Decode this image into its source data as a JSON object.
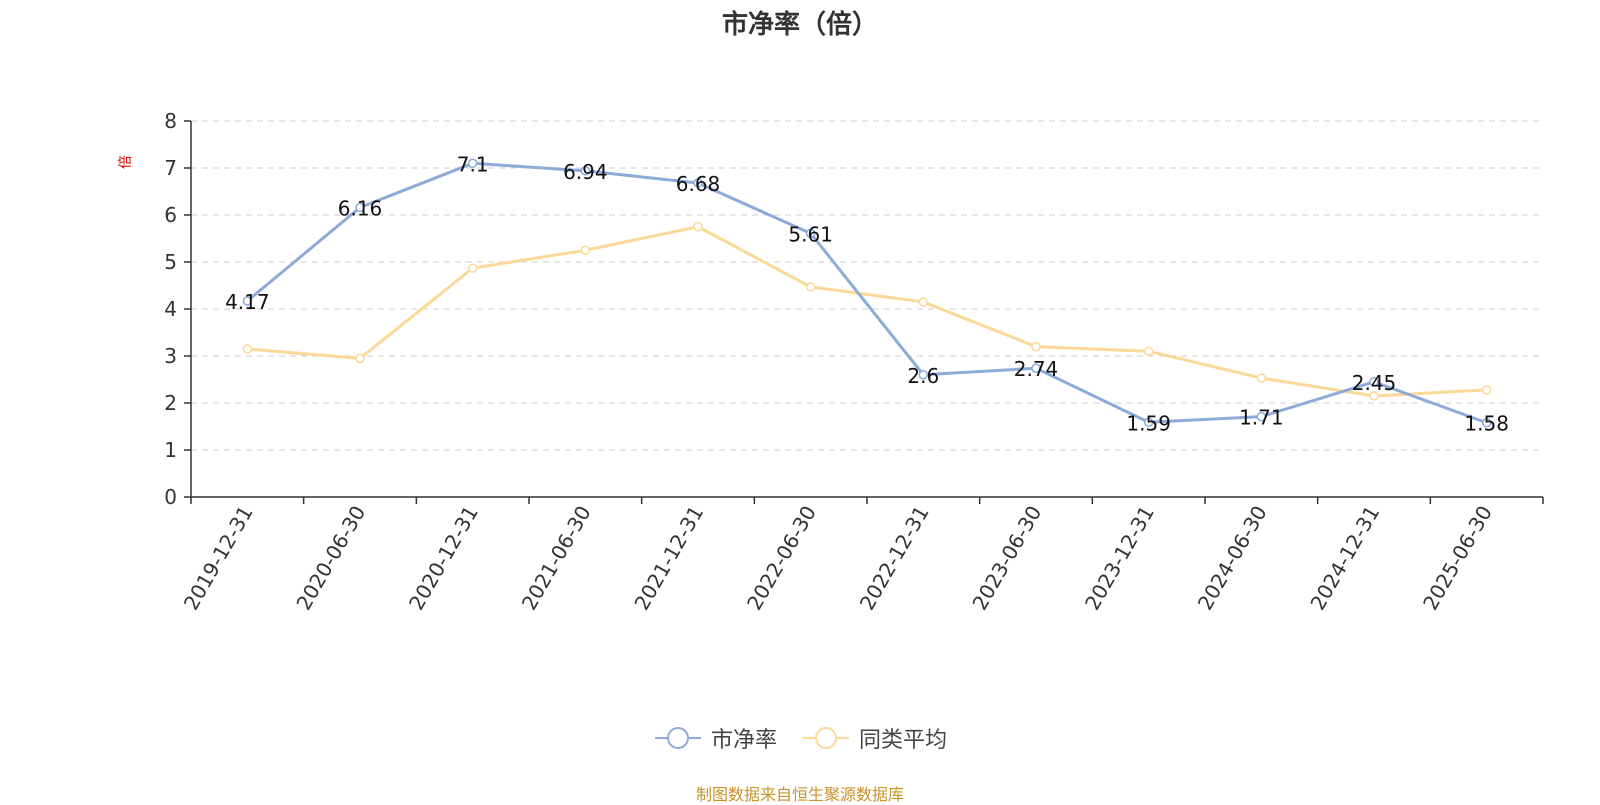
{
  "chart_data": {
    "type": "line",
    "title": "市净率（倍）",
    "ylabel": "倍",
    "xlabel": "",
    "ylim": [
      0,
      8
    ],
    "yticks": [
      0,
      1,
      2,
      3,
      4,
      5,
      6,
      7,
      8
    ],
    "grid": true,
    "legend_position": "bottom-center",
    "categories": [
      "2019-12-31",
      "2020-06-30",
      "2020-12-31",
      "2021-06-30",
      "2021-12-31",
      "2022-06-30",
      "2022-12-31",
      "2023-06-30",
      "2023-12-31",
      "2024-06-30",
      "2024-12-31",
      "2025-06-30"
    ],
    "series": [
      {
        "name": "市净率",
        "color": "#8eaad8",
        "values": [
          4.17,
          6.16,
          7.1,
          6.94,
          6.68,
          5.61,
          2.6,
          2.74,
          1.59,
          1.71,
          2.45,
          1.58
        ],
        "labels": [
          "4.17",
          "6.16",
          "7.1",
          "6.94",
          "6.68",
          "5.61",
          "2.6",
          "2.74",
          "1.59",
          "1.71",
          "2.45",
          "1.58"
        ]
      },
      {
        "name": "同类平均",
        "color": "#fbd897",
        "values": [
          3.15,
          2.95,
          4.87,
          5.25,
          5.75,
          4.47,
          4.15,
          3.2,
          3.1,
          2.53,
          2.15,
          2.28
        ]
      }
    ]
  },
  "source": "制图数据来自恒生聚源数据库"
}
